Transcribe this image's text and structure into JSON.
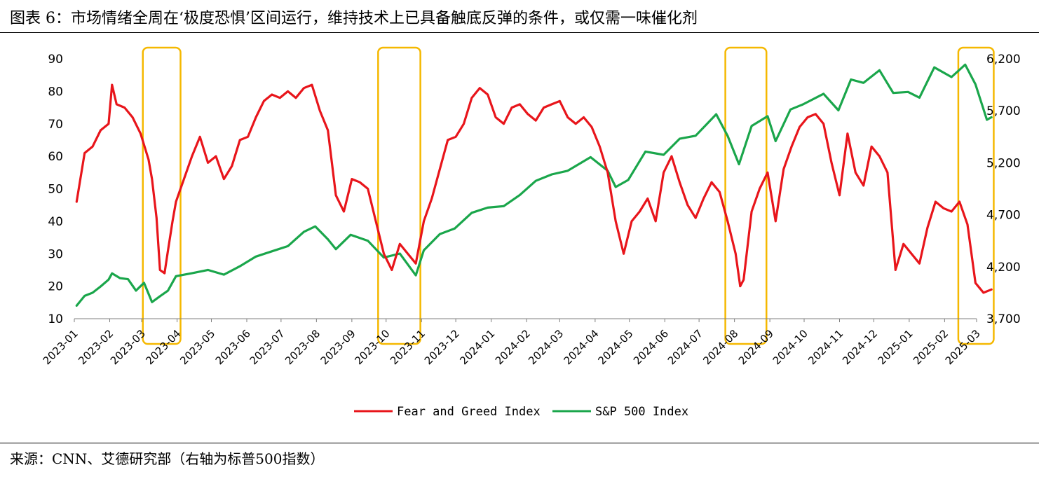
{
  "header": {
    "title": "图表 6：市场情绪全周在‘极度恐惧’区间运行，维持技术上已具备触底反弹的条件，或仅需一味催化剂"
  },
  "footer": {
    "source": "来源：CNN、艾德研究部（右轴为标普500指数）"
  },
  "chart_data": {
    "type": "line",
    "x_tick_labels": [
      "2023-01",
      "2023-02",
      "2023-03",
      "2023-04",
      "2023-05",
      "2023-06",
      "2023-07",
      "2023-08",
      "2023-09",
      "2023-10",
      "2023-11",
      "2023-12",
      "2024-01",
      "2024-02",
      "2024-03",
      "2024-04",
      "2024-05",
      "2024-06",
      "2024-07",
      "2024-08",
      "2024-09",
      "2024-10",
      "2024-11",
      "2024-12",
      "2025-01",
      "2025-02",
      "2025-03"
    ],
    "y_left": {
      "ticks": [
        "10",
        "20",
        "30",
        "40",
        "50",
        "60",
        "70",
        "80",
        "90"
      ],
      "ylim": [
        10,
        90
      ]
    },
    "y_right": {
      "ticks": [
        "3,700",
        "4,200",
        "4,700",
        "5,200",
        "5,700",
        "6,200"
      ],
      "ylim": [
        3700,
        6200
      ]
    },
    "legend_position": "bottom-center",
    "grid": false,
    "series": [
      {
        "name": "Fear and Greed Index",
        "axis": "left",
        "color": "#e8151b",
        "points": [
          [
            "2023-01-03",
            46
          ],
          [
            "2023-01-10",
            61
          ],
          [
            "2023-01-17",
            63
          ],
          [
            "2023-01-24",
            68
          ],
          [
            "2023-01-31",
            70
          ],
          [
            "2023-02-03",
            82
          ],
          [
            "2023-02-07",
            76
          ],
          [
            "2023-02-14",
            75
          ],
          [
            "2023-02-21",
            72
          ],
          [
            "2023-02-28",
            67
          ],
          [
            "2023-03-07",
            59
          ],
          [
            "2023-03-10",
            53
          ],
          [
            "2023-03-14",
            41
          ],
          [
            "2023-03-17",
            25
          ],
          [
            "2023-03-21",
            24
          ],
          [
            "2023-03-24",
            31
          ],
          [
            "2023-03-28",
            40
          ],
          [
            "2023-03-31",
            46
          ],
          [
            "2023-04-07",
            53
          ],
          [
            "2023-04-14",
            60
          ],
          [
            "2023-04-21",
            66
          ],
          [
            "2023-04-28",
            58
          ],
          [
            "2023-05-05",
            60
          ],
          [
            "2023-05-12",
            53
          ],
          [
            "2023-05-19",
            57
          ],
          [
            "2023-05-26",
            65
          ],
          [
            "2023-06-02",
            66
          ],
          [
            "2023-06-09",
            72
          ],
          [
            "2023-06-16",
            77
          ],
          [
            "2023-06-23",
            79
          ],
          [
            "2023-06-30",
            78
          ],
          [
            "2023-07-07",
            80
          ],
          [
            "2023-07-14",
            78
          ],
          [
            "2023-07-21",
            81
          ],
          [
            "2023-07-28",
            82
          ],
          [
            "2023-08-04",
            74
          ],
          [
            "2023-08-11",
            68
          ],
          [
            "2023-08-18",
            48
          ],
          [
            "2023-08-25",
            43
          ],
          [
            "2023-09-01",
            53
          ],
          [
            "2023-09-08",
            52
          ],
          [
            "2023-09-15",
            50
          ],
          [
            "2023-09-22",
            40
          ],
          [
            "2023-09-29",
            30
          ],
          [
            "2023-10-06",
            25
          ],
          [
            "2023-10-13",
            33
          ],
          [
            "2023-10-20",
            30
          ],
          [
            "2023-10-27",
            27
          ],
          [
            "2023-11-03",
            40
          ],
          [
            "2023-11-10",
            47
          ],
          [
            "2023-11-17",
            56
          ],
          [
            "2023-11-24",
            65
          ],
          [
            "2023-12-01",
            66
          ],
          [
            "2023-12-08",
            70
          ],
          [
            "2023-12-15",
            78
          ],
          [
            "2023-12-22",
            81
          ],
          [
            "2023-12-29",
            79
          ],
          [
            "2024-01-05",
            72
          ],
          [
            "2024-01-12",
            70
          ],
          [
            "2024-01-19",
            75
          ],
          [
            "2024-01-26",
            76
          ],
          [
            "2024-02-02",
            73
          ],
          [
            "2024-02-09",
            71
          ],
          [
            "2024-02-16",
            75
          ],
          [
            "2024-02-23",
            76
          ],
          [
            "2024-03-01",
            77
          ],
          [
            "2024-03-08",
            72
          ],
          [
            "2024-03-15",
            70
          ],
          [
            "2024-03-22",
            72
          ],
          [
            "2024-03-29",
            69
          ],
          [
            "2024-04-05",
            63
          ],
          [
            "2024-04-12",
            55
          ],
          [
            "2024-04-19",
            40
          ],
          [
            "2024-04-26",
            30
          ],
          [
            "2024-05-03",
            40
          ],
          [
            "2024-05-10",
            43
          ],
          [
            "2024-05-17",
            47
          ],
          [
            "2024-05-24",
            40
          ],
          [
            "2024-05-31",
            55
          ],
          [
            "2024-06-07",
            60
          ],
          [
            "2024-06-14",
            52
          ],
          [
            "2024-06-21",
            45
          ],
          [
            "2024-06-28",
            41
          ],
          [
            "2024-07-05",
            47
          ],
          [
            "2024-07-12",
            52
          ],
          [
            "2024-07-19",
            49
          ],
          [
            "2024-07-26",
            40
          ],
          [
            "2024-08-02",
            30
          ],
          [
            "2024-08-06",
            20
          ],
          [
            "2024-08-09",
            22
          ],
          [
            "2024-08-16",
            43
          ],
          [
            "2024-08-23",
            50
          ],
          [
            "2024-08-30",
            55
          ],
          [
            "2024-09-06",
            40
          ],
          [
            "2024-09-13",
            56
          ],
          [
            "2024-09-20",
            63
          ],
          [
            "2024-09-27",
            69
          ],
          [
            "2024-10-04",
            72
          ],
          [
            "2024-10-11",
            73
          ],
          [
            "2024-10-18",
            70
          ],
          [
            "2024-10-25",
            58
          ],
          [
            "2024-11-01",
            48
          ],
          [
            "2024-11-08",
            67
          ],
          [
            "2024-11-15",
            55
          ],
          [
            "2024-11-22",
            51
          ],
          [
            "2024-11-29",
            63
          ],
          [
            "2024-12-06",
            60
          ],
          [
            "2024-12-13",
            55
          ],
          [
            "2024-12-20",
            25
          ],
          [
            "2024-12-27",
            33
          ],
          [
            "2025-01-03",
            30
          ],
          [
            "2025-01-10",
            27
          ],
          [
            "2025-01-17",
            38
          ],
          [
            "2025-01-24",
            46
          ],
          [
            "2025-01-31",
            44
          ],
          [
            "2025-02-07",
            43
          ],
          [
            "2025-02-14",
            46
          ],
          [
            "2025-02-21",
            39
          ],
          [
            "2025-02-28",
            21
          ],
          [
            "2025-03-07",
            18
          ],
          [
            "2025-03-14",
            19
          ]
        ]
      },
      {
        "name": "S&P 500 Index",
        "axis": "right",
        "color": "#1aa64b",
        "points": [
          [
            "2023-01-03",
            3825
          ],
          [
            "2023-01-10",
            3920
          ],
          [
            "2023-01-17",
            3950
          ],
          [
            "2023-01-24",
            4010
          ],
          [
            "2023-01-31",
            4076
          ],
          [
            "2023-02-03",
            4136
          ],
          [
            "2023-02-10",
            4090
          ],
          [
            "2023-02-17",
            4080
          ],
          [
            "2023-02-24",
            3970
          ],
          [
            "2023-03-03",
            4045
          ],
          [
            "2023-03-10",
            3860
          ],
          [
            "2023-03-17",
            3916
          ],
          [
            "2023-03-24",
            3970
          ],
          [
            "2023-03-31",
            4109
          ],
          [
            "2023-04-14",
            4137
          ],
          [
            "2023-04-28",
            4169
          ],
          [
            "2023-05-12",
            4124
          ],
          [
            "2023-05-26",
            4205
          ],
          [
            "2023-06-09",
            4298
          ],
          [
            "2023-06-23",
            4348
          ],
          [
            "2023-07-07",
            4398
          ],
          [
            "2023-07-21",
            4536
          ],
          [
            "2023-07-31",
            4588
          ],
          [
            "2023-08-11",
            4464
          ],
          [
            "2023-08-18",
            4369
          ],
          [
            "2023-08-31",
            4507
          ],
          [
            "2023-09-15",
            4450
          ],
          [
            "2023-09-29",
            4288
          ],
          [
            "2023-10-13",
            4327
          ],
          [
            "2023-10-27",
            4117
          ],
          [
            "2023-11-03",
            4358
          ],
          [
            "2023-11-17",
            4514
          ],
          [
            "2023-11-30",
            4567
          ],
          [
            "2023-12-15",
            4719
          ],
          [
            "2023-12-29",
            4769
          ],
          [
            "2024-01-12",
            4783
          ],
          [
            "2024-01-26",
            4890
          ],
          [
            "2024-02-09",
            5026
          ],
          [
            "2024-02-23",
            5088
          ],
          [
            "2024-03-08",
            5123
          ],
          [
            "2024-03-28",
            5254
          ],
          [
            "2024-04-12",
            5123
          ],
          [
            "2024-04-19",
            4967
          ],
          [
            "2024-04-30",
            5035
          ],
          [
            "2024-05-15",
            5308
          ],
          [
            "2024-05-31",
            5277
          ],
          [
            "2024-06-14",
            5431
          ],
          [
            "2024-06-28",
            5460
          ],
          [
            "2024-07-16",
            5667
          ],
          [
            "2024-07-26",
            5459
          ],
          [
            "2024-08-05",
            5186
          ],
          [
            "2024-08-16",
            5554
          ],
          [
            "2024-08-30",
            5648
          ],
          [
            "2024-09-06",
            5408
          ],
          [
            "2024-09-19",
            5713
          ],
          [
            "2024-09-30",
            5762
          ],
          [
            "2024-10-18",
            5864
          ],
          [
            "2024-10-31",
            5705
          ],
          [
            "2024-11-11",
            6001
          ],
          [
            "2024-11-22",
            5969
          ],
          [
            "2024-12-06",
            6090
          ],
          [
            "2024-12-18",
            5872
          ],
          [
            "2024-12-31",
            5881
          ],
          [
            "2025-01-10",
            5827
          ],
          [
            "2025-01-23",
            6118
          ],
          [
            "2025-02-07",
            6025
          ],
          [
            "2025-02-19",
            6144
          ],
          [
            "2025-02-28",
            5955
          ],
          [
            "2025-03-10",
            5614
          ],
          [
            "2025-03-14",
            5638
          ]
        ]
      }
    ],
    "highlight_boxes": [
      {
        "from": "2023-03-02",
        "to": "2023-04-04"
      },
      {
        "from": "2023-09-24",
        "to": "2023-10-31"
      },
      {
        "from": "2024-07-24",
        "to": "2024-08-29"
      },
      {
        "from": "2025-02-13",
        "to": "2025-03-16"
      }
    ],
    "highlight_color": "#f5b800"
  }
}
